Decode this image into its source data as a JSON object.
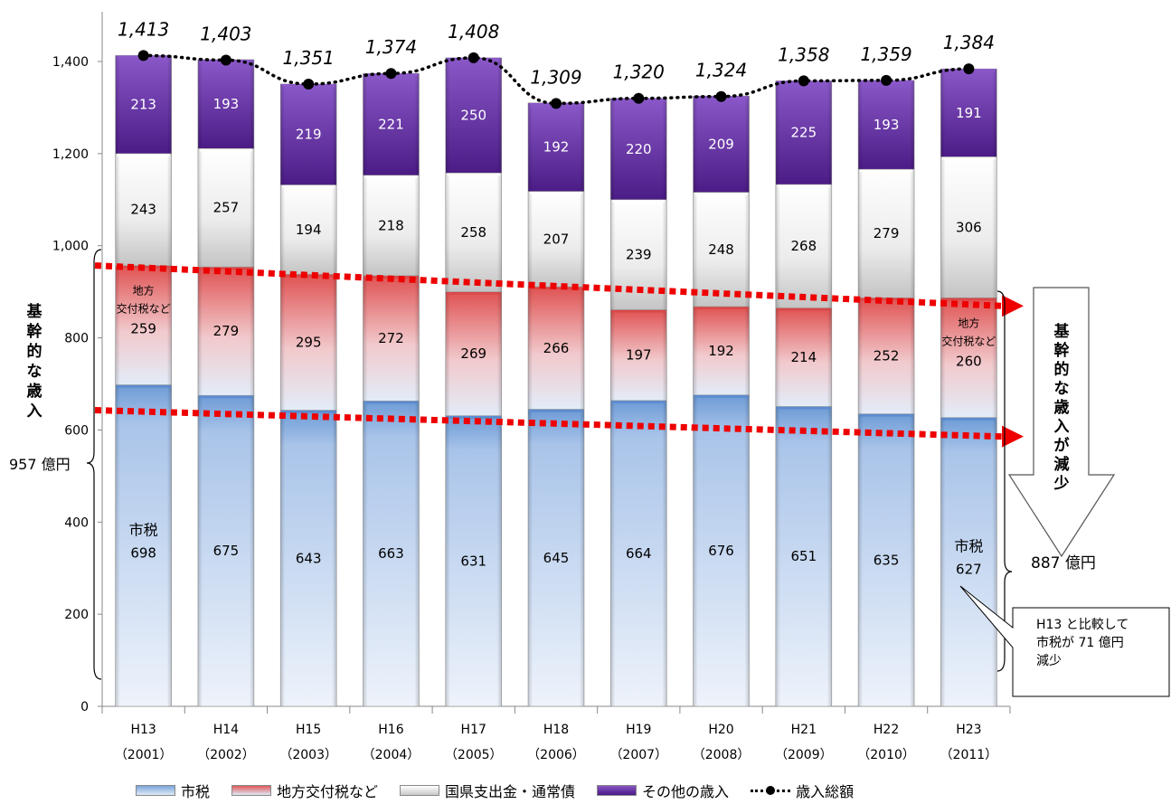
{
  "chart_data": {
    "type": "bar",
    "stacked": true,
    "categories": [
      "H13",
      "H14",
      "H15",
      "H16",
      "H17",
      "H18",
      "H19",
      "H20",
      "H21",
      "H22",
      "H23"
    ],
    "category_years": [
      "（2001）",
      "（2002）",
      "（2003）",
      "（2004）",
      "（2005）",
      "（2006）",
      "（2007）",
      "（2008）",
      "（2009）",
      "（2010）",
      "（2011）"
    ],
    "ylim": [
      0,
      1400
    ],
    "yticks": [
      0,
      200,
      400,
      600,
      800,
      "1,000",
      "1,200",
      "1,400"
    ],
    "series": [
      {
        "name": "市税",
        "values": [
          698,
          675,
          643,
          663,
          631,
          645,
          664,
          676,
          651,
          635,
          627
        ],
        "color": "#7aa6dc"
      },
      {
        "name": "地方交付税など",
        "values": [
          259,
          279,
          295,
          272,
          269,
          266,
          197,
          192,
          214,
          252,
          260
        ],
        "color": "#e05a5a"
      },
      {
        "name": "国県支出金・通常債",
        "values": [
          243,
          257,
          194,
          218,
          258,
          207,
          239,
          248,
          268,
          279,
          306
        ],
        "color": "#d9d9d9"
      },
      {
        "name": "その他の歳入",
        "values": [
          213,
          193,
          219,
          221,
          250,
          192,
          220,
          209,
          225,
          193,
          191
        ],
        "color": "#6a2fa8"
      }
    ],
    "line_series": {
      "name": "歳入総額",
      "values": [
        1413,
        1403,
        1351,
        1374,
        1408,
        1309,
        1320,
        1324,
        1358,
        1359,
        1384
      ],
      "labels": [
        "1,413",
        "1,403",
        "1,351",
        "1,374",
        "1,408",
        "1,309",
        "1,320",
        "1,324",
        "1,358",
        "1,359",
        "1,384"
      ]
    },
    "inline_labels": {
      "shizei": "市税",
      "kofu_line1": "地方",
      "kofu_line2": "交付税など"
    },
    "legend_position": "bottom"
  },
  "annotations": {
    "left_vertical": [
      "基",
      "幹",
      "的",
      "な",
      "歳",
      "入"
    ],
    "left_total": "957 億円",
    "right_vertical": [
      "基",
      "幹",
      "的",
      "な",
      "歳",
      "入",
      "が",
      "減",
      "少"
    ],
    "right_total": "887 億円",
    "callout": [
      "H13 と比較して",
      "市税が  71  億円",
      "減少"
    ]
  },
  "legend": {
    "items": [
      "市税",
      "地方交付税など",
      "国県支出金・通常債",
      "その他の歳入",
      "歳入総額"
    ]
  }
}
